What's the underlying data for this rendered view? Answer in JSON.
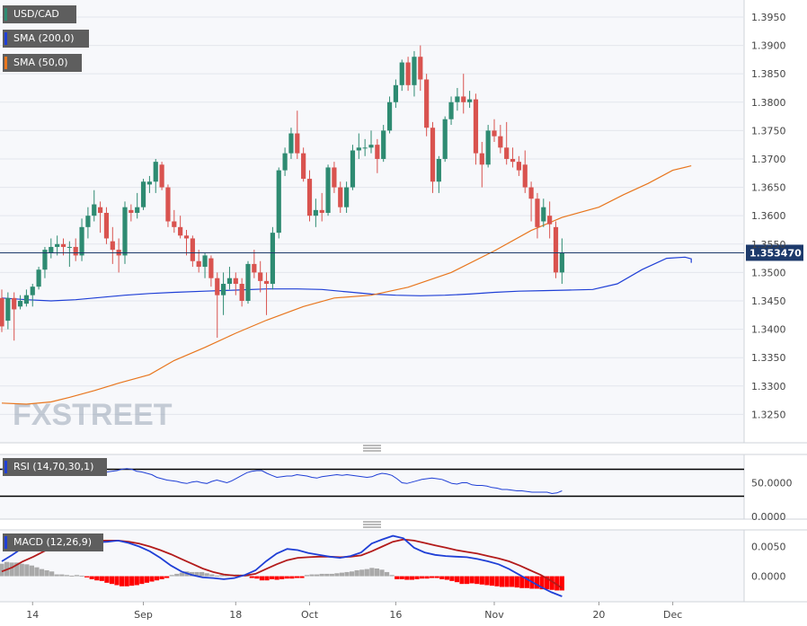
{
  "colors": {
    "bull": "#2e8b72",
    "bear": "#d9534f",
    "sma200": "#1f3fd6",
    "sma50": "#e8761e",
    "rsi": "#1f3fd6",
    "macd": "#1f3fd6",
    "signal": "#b31b1b",
    "hist_pos": "#a9a9a9",
    "hist_neg": "#ff0000",
    "badge_bg": "#5e5e5e",
    "price_bg": "#1d3a6b"
  },
  "legend": {
    "symbol": "USD/CAD",
    "sma200": "SMA (200,0)",
    "sma50": "SMA (50,0)",
    "rsi": "RSI (14,70,30,1)",
    "macd": "MACD (12,26,9)"
  },
  "watermark": "FXSTREET",
  "chart_data": [
    {
      "type": "candlestick",
      "title": "USD/CAD",
      "last_price_label": "1.353470",
      "ylim": [
        1.32,
        1.398
      ],
      "y_ticks": [
        "1.3950",
        "1.3900",
        "1.3850",
        "1.3800",
        "1.3750",
        "1.3700",
        "1.3650",
        "1.3600",
        "1.3550",
        "1.3500",
        "1.3450",
        "1.3400",
        "1.3350",
        "1.3300",
        "1.3250"
      ],
      "x_ticks": [
        {
          "label": "14",
          "index": 5
        },
        {
          "label": "Sep",
          "index": 23
        },
        {
          "label": "18",
          "index": 38
        },
        {
          "label": "Oct",
          "index": 50
        },
        {
          "label": "16",
          "index": 64
        },
        {
          "label": "Nov",
          "index": 80
        },
        {
          "label": "20",
          "index": 97
        },
        {
          "label": "Dec",
          "index": 109
        }
      ],
      "candles": [
        [
          1.3455,
          1.347,
          1.3395,
          1.3405
        ],
        [
          1.3415,
          1.3465,
          1.34,
          1.3455
        ],
        [
          1.3455,
          1.3465,
          1.338,
          1.3435
        ],
        [
          1.344,
          1.346,
          1.3435,
          1.345
        ],
        [
          1.3445,
          1.347,
          1.344,
          1.346
        ],
        [
          1.346,
          1.348,
          1.344,
          1.3475
        ],
        [
          1.3475,
          1.351,
          1.347,
          1.3505
        ],
        [
          1.3505,
          1.3545,
          1.349,
          1.354
        ],
        [
          1.3535,
          1.356,
          1.3525,
          1.3545
        ],
        [
          1.3545,
          1.3565,
          1.353,
          1.355
        ],
        [
          1.355,
          1.356,
          1.353,
          1.3545
        ],
        [
          1.3545,
          1.3555,
          1.351,
          1.3545
        ],
        [
          1.3545,
          1.356,
          1.352,
          1.353
        ],
        [
          1.353,
          1.3595,
          1.352,
          1.358
        ],
        [
          1.358,
          1.3615,
          1.356,
          1.36
        ],
        [
          1.36,
          1.3645,
          1.359,
          1.362
        ],
        [
          1.3615,
          1.3625,
          1.357,
          1.3605
        ],
        [
          1.3605,
          1.3615,
          1.355,
          1.356
        ],
        [
          1.3555,
          1.358,
          1.3515,
          1.354
        ],
        [
          1.354,
          1.356,
          1.35,
          1.353
        ],
        [
          1.353,
          1.3625,
          1.3515,
          1.3615
        ],
        [
          1.361,
          1.362,
          1.359,
          1.3605
        ],
        [
          1.3605,
          1.364,
          1.3595,
          1.3615
        ],
        [
          1.3615,
          1.3665,
          1.361,
          1.366
        ],
        [
          1.3655,
          1.367,
          1.364,
          1.366
        ],
        [
          1.366,
          1.37,
          1.364,
          1.3695
        ],
        [
          1.369,
          1.3695,
          1.3645,
          1.365
        ],
        [
          1.365,
          1.3655,
          1.358,
          1.359
        ],
        [
          1.359,
          1.361,
          1.357,
          1.358
        ],
        [
          1.358,
          1.36,
          1.356,
          1.3565
        ],
        [
          1.3565,
          1.3575,
          1.353,
          1.356
        ],
        [
          1.356,
          1.3565,
          1.351,
          1.352
        ],
        [
          1.352,
          1.354,
          1.35,
          1.351
        ],
        [
          1.351,
          1.3535,
          1.349,
          1.353
        ],
        [
          1.3525,
          1.353,
          1.3475,
          1.349
        ],
        [
          1.349,
          1.35,
          1.3385,
          1.346
        ],
        [
          1.346,
          1.35,
          1.3425,
          1.348
        ],
        [
          1.348,
          1.351,
          1.347,
          1.349
        ],
        [
          1.349,
          1.35,
          1.346,
          1.348
        ],
        [
          1.348,
          1.349,
          1.344,
          1.345
        ],
        [
          1.345,
          1.352,
          1.3445,
          1.3515
        ],
        [
          1.3515,
          1.354,
          1.349,
          1.35
        ],
        [
          1.35,
          1.352,
          1.3465,
          1.3485
        ],
        [
          1.3485,
          1.35,
          1.3425,
          1.348
        ],
        [
          1.348,
          1.358,
          1.347,
          1.357
        ],
        [
          1.357,
          1.3685,
          1.356,
          1.368
        ],
        [
          1.368,
          1.372,
          1.367,
          1.371
        ],
        [
          1.371,
          1.3755,
          1.37,
          1.3745
        ],
        [
          1.3745,
          1.3785,
          1.37,
          1.371
        ],
        [
          1.371,
          1.372,
          1.366,
          1.3665
        ],
        [
          1.3665,
          1.368,
          1.359,
          1.36
        ],
        [
          1.36,
          1.363,
          1.358,
          1.361
        ],
        [
          1.361,
          1.364,
          1.359,
          1.3605
        ],
        [
          1.3605,
          1.369,
          1.36,
          1.3685
        ],
        [
          1.3685,
          1.3695,
          1.364,
          1.365
        ],
        [
          1.365,
          1.366,
          1.3605,
          1.3615
        ],
        [
          1.3615,
          1.366,
          1.3605,
          1.365
        ],
        [
          1.365,
          1.3725,
          1.3645,
          1.3715
        ],
        [
          1.3715,
          1.3745,
          1.37,
          1.372
        ],
        [
          1.372,
          1.3735,
          1.3705,
          1.372
        ],
        [
          1.372,
          1.375,
          1.371,
          1.3725
        ],
        [
          1.3725,
          1.3735,
          1.3675,
          1.37
        ],
        [
          1.37,
          1.376,
          1.3695,
          1.375
        ],
        [
          1.375,
          1.381,
          1.3745,
          1.38
        ],
        [
          1.38,
          1.384,
          1.379,
          1.383
        ],
        [
          1.383,
          1.3875,
          1.382,
          1.387
        ],
        [
          1.387,
          1.388,
          1.382,
          1.383
        ],
        [
          1.383,
          1.389,
          1.381,
          1.388
        ],
        [
          1.388,
          1.39,
          1.382,
          1.384
        ],
        [
          1.384,
          1.385,
          1.374,
          1.3755
        ],
        [
          1.3755,
          1.3765,
          1.364,
          1.366
        ],
        [
          1.366,
          1.3705,
          1.364,
          1.37
        ],
        [
          1.37,
          1.3775,
          1.3695,
          1.377
        ],
        [
          1.377,
          1.381,
          1.376,
          1.38
        ],
        [
          1.38,
          1.3825,
          1.3785,
          1.381
        ],
        [
          1.381,
          1.385,
          1.378,
          1.38
        ],
        [
          1.38,
          1.382,
          1.379,
          1.3805
        ],
        [
          1.3805,
          1.3815,
          1.369,
          1.371
        ],
        [
          1.371,
          1.373,
          1.365,
          1.369
        ],
        [
          1.369,
          1.376,
          1.3685,
          1.375
        ],
        [
          1.375,
          1.377,
          1.373,
          1.374
        ],
        [
          1.374,
          1.376,
          1.371,
          1.372
        ],
        [
          1.372,
          1.3765,
          1.369,
          1.37
        ],
        [
          1.37,
          1.372,
          1.3685,
          1.3695
        ],
        [
          1.3695,
          1.3705,
          1.367,
          1.368
        ],
        [
          1.369,
          1.3715,
          1.364,
          1.365
        ],
        [
          1.365,
          1.366,
          1.359,
          1.363
        ],
        [
          1.363,
          1.364,
          1.356,
          1.358
        ],
        [
          1.359,
          1.363,
          1.358,
          1.3615
        ],
        [
          1.36,
          1.3625,
          1.356,
          1.3585
        ],
        [
          1.358,
          1.359,
          1.349,
          1.35
        ],
        [
          1.35,
          1.356,
          1.348,
          1.3535
        ]
      ],
      "sma200": [
        1.3455,
        1.3452,
        1.345,
        1.3452,
        1.3456,
        1.346,
        1.3463,
        1.3465,
        1.3467,
        1.3469,
        1.3471,
        1.3471,
        1.347,
        1.3466,
        1.3462,
        1.346,
        1.3459,
        1.346,
        1.3462,
        1.3465,
        1.3467,
        1.3468,
        1.3469,
        1.347,
        1.348,
        1.3505,
        1.3525,
        1.3527,
        1.3524,
        1.3518,
        1.3517,
        1.3518
      ],
      "sma50": [
        1.327,
        1.3268,
        1.3272,
        1.328,
        1.3292,
        1.3305,
        1.332,
        1.3345,
        1.3368,
        1.3393,
        1.3416,
        1.344,
        1.3455,
        1.346,
        1.3474,
        1.35,
        1.3538,
        1.3574,
        1.3597,
        1.3615,
        1.3637,
        1.3657,
        1.368,
        1.3688
      ],
      "sma_x": [
        0,
        4,
        8,
        11,
        15,
        19,
        24,
        28,
        33,
        38,
        43,
        49,
        54,
        60,
        66,
        73,
        80,
        86,
        91,
        97,
        101,
        105,
        109,
        112
      ],
      "sma200_x": [
        0,
        4,
        8,
        12,
        16,
        20,
        24,
        28,
        33,
        38,
        43,
        48,
        52,
        56,
        60,
        64,
        68,
        72,
        76,
        80,
        84,
        88,
        92,
        96,
        100,
        104,
        108,
        111,
        112,
        112,
        112,
        112
      ]
    },
    {
      "type": "line",
      "title": "RSI (14,70,30,1)",
      "ylim": [
        -4,
        92
      ],
      "y_ticks": [
        "50.0000",
        "0.0000"
      ],
      "levels": [
        70,
        30
      ],
      "values": [
        70,
        71,
        72,
        73,
        71,
        70,
        72,
        74,
        73,
        72,
        70,
        71,
        72,
        73,
        74,
        73,
        74,
        72,
        66,
        64,
        65,
        66,
        67,
        68,
        70,
        71,
        70,
        67,
        66,
        64,
        62,
        58,
        56,
        54,
        53,
        52,
        50,
        49,
        51,
        52,
        50,
        49,
        52,
        54,
        52,
        50,
        53,
        57,
        61,
        65,
        67,
        68,
        68,
        64,
        61,
        58,
        59,
        60,
        60,
        62,
        61,
        60,
        58,
        57,
        59,
        60,
        61,
        62,
        61,
        62,
        61,
        60,
        59,
        58,
        59,
        62,
        64,
        63,
        61,
        56,
        50,
        49,
        51,
        53,
        55,
        56,
        57,
        56,
        55,
        52,
        49,
        48,
        50,
        50,
        47,
        46,
        46,
        45,
        43,
        42,
        40,
        40,
        39,
        38,
        38,
        37,
        36,
        36,
        36,
        36,
        34,
        35,
        38
      ]
    },
    {
      "type": "line",
      "title": "MACD (12,26,9)",
      "ylim": [
        -0.0043,
        0.0078
      ],
      "y_ticks": [
        "0.0050",
        "0.0000"
      ],
      "macd": [
        0.0025,
        0.0036,
        0.0048,
        0.0056,
        0.0062,
        0.0066,
        0.0068,
        0.0066,
        0.006,
        0.0057,
        0.0058,
        0.006,
        0.0056,
        0.005,
        0.0042,
        0.0031,
        0.0018,
        0.0008,
        0.0002,
        -0.0002,
        -0.0003,
        -0.0005,
        -0.0003,
        0.0002,
        0.001,
        0.0025,
        0.0038,
        0.0046,
        0.0044,
        0.0039,
        0.0036,
        0.0033,
        0.0031,
        0.0034,
        0.004,
        0.0055,
        0.0062,
        0.0068,
        0.0064,
        0.0048,
        0.004,
        0.0036,
        0.0034,
        0.0033,
        0.0032,
        0.0029,
        0.0025,
        0.002,
        0.0012,
        0.0002,
        -0.0008,
        -0.0018,
        -0.0027,
        -0.0034
      ],
      "signal": [
        0.0008,
        0.0015,
        0.0025,
        0.0033,
        0.0042,
        0.005,
        0.0056,
        0.0059,
        0.0061,
        0.006,
        0.006,
        0.006,
        0.0058,
        0.0055,
        0.005,
        0.0044,
        0.0037,
        0.0029,
        0.0021,
        0.0013,
        0.0007,
        0.0003,
        0.0001,
        0.0001,
        0.0004,
        0.0012,
        0.002,
        0.0027,
        0.0031,
        0.0032,
        0.0033,
        0.0033,
        0.0032,
        0.0033,
        0.0035,
        0.0042,
        0.005,
        0.0058,
        0.0062,
        0.006,
        0.0056,
        0.0052,
        0.0048,
        0.0044,
        0.0041,
        0.0038,
        0.0034,
        0.003,
        0.0025,
        0.0018,
        0.001,
        0.0002,
        -0.0008,
        -0.002
      ],
      "histogram": [
        0.0021,
        0.0024,
        0.0023,
        0.0023,
        0.0021,
        0.002,
        0.0018,
        0.0015,
        0.0012,
        0.001,
        0.0008,
        0.0003,
        0.0003,
        0.0002,
        0.0001,
        0.0002,
        0.0001,
        -0.0002,
        -0.0005,
        -0.0007,
        -0.0008,
        -0.0011,
        -0.0013,
        -0.0015,
        -0.0017,
        -0.0017,
        -0.0016,
        -0.0015,
        -0.0013,
        -0.0011,
        -0.0009,
        -0.0007,
        -0.0005,
        -0.0003,
        0.0002,
        0.0004,
        0.0006,
        0.0008,
        0.0007,
        0.0007,
        0.0007,
        0.0005,
        0.0003,
        0.0001,
        0.0002,
        0.0003,
        0.0003,
        0.0003,
        0.0003,
        0.0001,
        -0.0003,
        -0.0004,
        -0.0007,
        -0.0007,
        -0.0005,
        -0.0006,
        -0.0005,
        -0.0004,
        -0.0004,
        -0.0003,
        -0.0003,
        0.0002,
        0.0003,
        0.0003,
        0.0004,
        0.0004,
        0.0004,
        0.0005,
        0.0006,
        0.0007,
        0.0008,
        0.001,
        0.0011,
        0.0012,
        0.0014,
        0.0013,
        0.0011,
        0.0007,
        0.0002,
        -0.0005,
        -0.0005,
        -0.0006,
        -0.0006,
        -0.0005,
        -0.0004,
        -0.0004,
        -0.0003,
        -0.0003,
        -0.0005,
        -0.0006,
        -0.0008,
        -0.001,
        -0.0013,
        -0.0013,
        -0.0012,
        -0.0013,
        -0.0014,
        -0.0015,
        -0.0016,
        -0.0017,
        -0.0018,
        -0.0018,
        -0.0018,
        -0.0019,
        -0.002,
        -0.002,
        -0.0021,
        -0.0021,
        -0.0022,
        -0.0022,
        -0.0023,
        -0.0024,
        -0.0024
      ]
    }
  ]
}
